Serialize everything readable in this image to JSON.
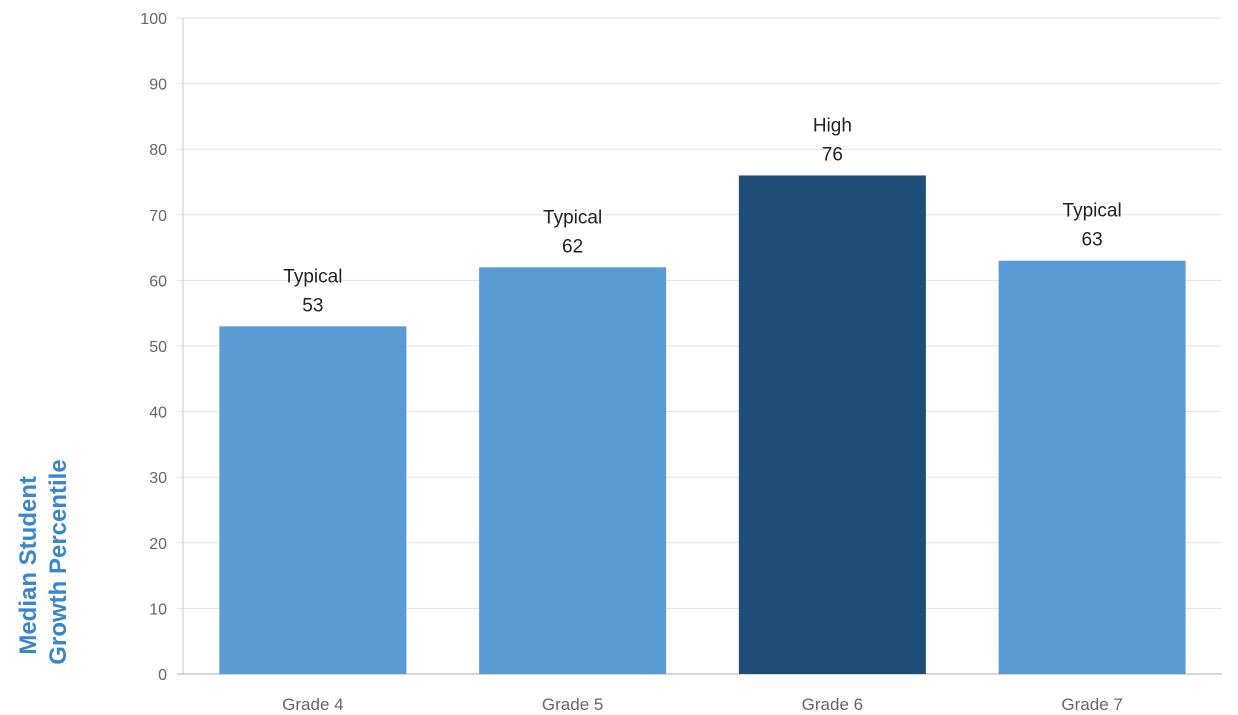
{
  "chart_data": {
    "type": "bar",
    "title": "",
    "xlabel": "",
    "ylabel": [
      "Median Student",
      "Growth Percentile"
    ],
    "ylim": [
      0,
      100
    ],
    "yticks": [
      0,
      10,
      20,
      30,
      40,
      50,
      60,
      70,
      80,
      90,
      100
    ],
    "grid": true,
    "categories": [
      "Grade 4",
      "Grade 5",
      "Grade 6",
      "Grade 7"
    ],
    "values": [
      53,
      62,
      76,
      63
    ],
    "labels": [
      "Typical",
      "Typical",
      "High",
      "Typical"
    ],
    "colors": [
      "#5b9bd5",
      "#5b9bd5",
      "#1f4e79",
      "#5b9bd5"
    ]
  },
  "colors": {
    "typical": "#5b9bd5",
    "high": "#1f4e79",
    "axis_title": "#3a86c8",
    "grid": "#e3e3e3",
    "axis": "#c8c8c8",
    "tick_text": "#666666",
    "label_text": "#222222"
  }
}
